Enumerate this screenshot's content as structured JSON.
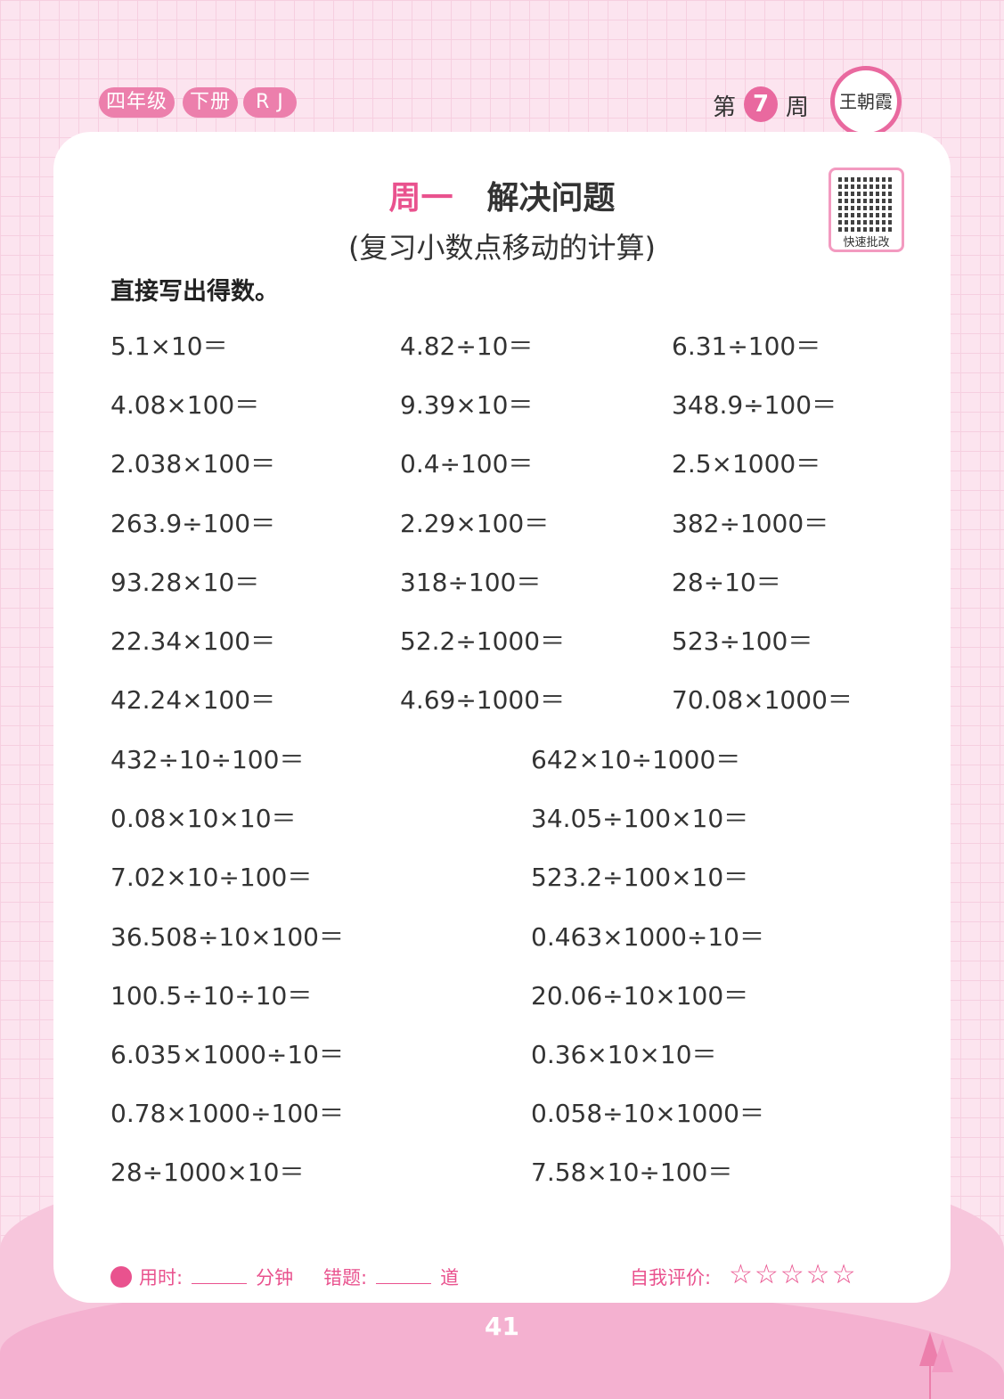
{
  "header": {
    "badges": [
      "四年级",
      "下册",
      "R J"
    ],
    "week_prefix": "第",
    "week_number": "7",
    "week_suffix": "周",
    "logo_text": "王朝霞"
  },
  "title": {
    "day": "周一",
    "topic": "解决问题",
    "subtitle": "(复习小数点移动的计算)"
  },
  "qr": {
    "label": "快速批改"
  },
  "instruction": "直接写出得数。",
  "problems_3col": [
    [
      "5.1×10＝",
      "4.82÷10＝",
      "6.31÷100＝"
    ],
    [
      "4.08×100＝",
      "9.39×10＝",
      "348.9÷100＝"
    ],
    [
      "2.038×100＝",
      "0.4÷100＝",
      "2.5×1000＝"
    ],
    [
      "263.9÷100＝",
      "2.29×100＝",
      "382÷1000＝"
    ],
    [
      "93.28×10＝",
      "318÷100＝",
      "28÷10＝"
    ],
    [
      "22.34×100＝",
      "52.2÷1000＝",
      "523÷100＝"
    ],
    [
      "42.24×100＝",
      "4.69÷1000＝",
      "70.08×1000＝"
    ]
  ],
  "problems_2col": [
    [
      "432÷10÷100＝",
      "642×10÷1000＝"
    ],
    [
      "0.08×10×10＝",
      "34.05÷100×10＝"
    ],
    [
      "7.02×10÷100＝",
      "523.2÷100×10＝"
    ],
    [
      "36.508÷10×100＝",
      "0.463×1000÷10＝"
    ],
    [
      "100.5÷10÷10＝",
      "20.06÷10×100＝"
    ],
    [
      "6.035×1000÷10＝",
      "0.36×10×10＝"
    ],
    [
      "0.78×1000÷100＝",
      "0.058÷10×1000＝"
    ],
    [
      "28÷1000×10＝",
      "7.58×10÷100＝"
    ]
  ],
  "footer": {
    "time_label": "用时:",
    "time_unit": "分钟",
    "errors_label": "错题:",
    "errors_unit": "道",
    "self_eval_label": "自我评价:",
    "stars": "☆☆☆☆☆",
    "rating": 0
  },
  "page_number": "41",
  "colors": {
    "accent": "#e9528e",
    "badge": "#ec7fac"
  }
}
